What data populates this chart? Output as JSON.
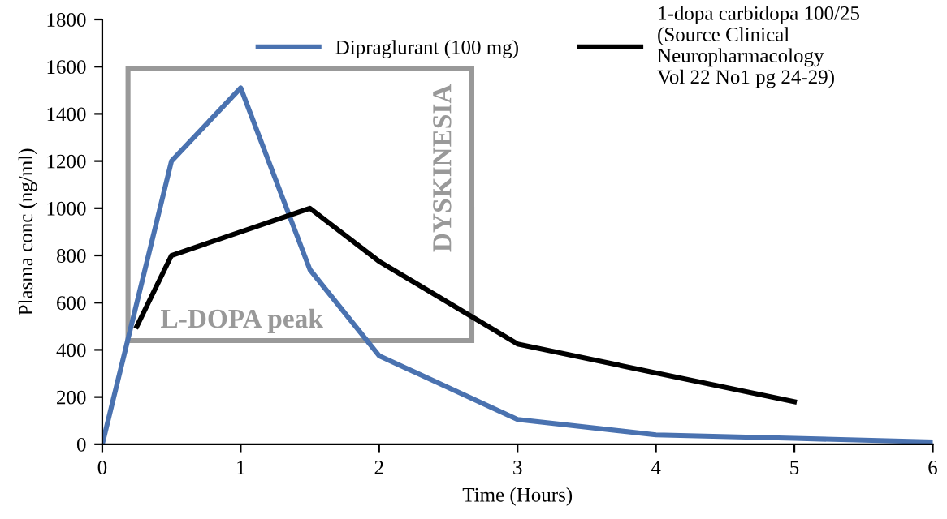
{
  "chart_data": {
    "type": "line",
    "xlabel": "Time (Hours)",
    "ylabel": "Plasma conc (ng/ml)",
    "xlim": [
      0,
      6
    ],
    "xticks": [
      0,
      1,
      2,
      3,
      4,
      5,
      6
    ],
    "ylim": [
      0,
      1800
    ],
    "yticks": [
      0,
      200,
      400,
      600,
      800,
      1000,
      1200,
      1400,
      1600,
      1800
    ],
    "series": [
      {
        "name": "Dipraglurant (100 mg)",
        "color": "#4a72b0",
        "x": [
          0,
          0.5,
          1,
          1.5,
          2,
          3,
          4,
          5,
          6
        ],
        "values": [
          0,
          1200,
          1510,
          740,
          375,
          105,
          40,
          25,
          10
        ]
      },
      {
        "name": "1-dopa carbidopa 100/25\n(Source Clinical\nNeuropharmacology\nVol 22 No1 pg 24-29)",
        "color": "#000000",
        "x": [
          0.25,
          0.5,
          1.5,
          2,
          3,
          5
        ],
        "values": [
          500,
          800,
          1000,
          775,
          425,
          180
        ]
      }
    ],
    "annotations": [
      "L-DOPA peak",
      "DYSKINESIA"
    ],
    "legend": "top",
    "grid": false,
    "marker": "none",
    "line_style": "solid"
  }
}
